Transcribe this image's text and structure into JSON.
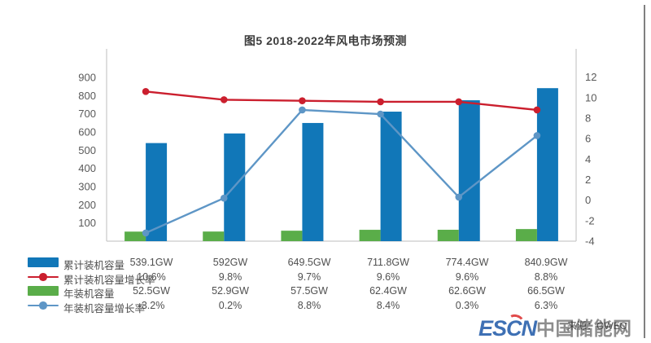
{
  "title": "图5 2018-2022年风电市场预测",
  "source_note": "来源：GWEC",
  "logo": {
    "es": "ES",
    "c": "C",
    "n": "N",
    "chinese": "中国储能网"
  },
  "colors": {
    "bar_primary": "#1177b8",
    "bar_secondary": "#5aad49",
    "line_primary": "#cb1f2e",
    "line_secondary": "#5e96c6",
    "axis_line": "#c9c9c9",
    "tick_text": "#595959",
    "title_text": "#3c3c3c",
    "logo_blue": "#3e70b4",
    "logo_gray": "#8d8d8d",
    "logo_red": "#e14b4b"
  },
  "chart_data": {
    "type": "combo (bar + line, dual axis)",
    "title": "图5 2018-2022年风电市场预测",
    "categories": [
      "",
      "",
      "",
      "",
      "",
      ""
    ],
    "series": [
      {
        "name": "累计装机容量",
        "type": "bar",
        "axis": "left",
        "color_key": "bar_primary",
        "unit": "GW",
        "values": [
          539.1,
          592,
          649.5,
          711.8,
          774.4,
          840.9
        ],
        "display": [
          "539.1GW",
          "592GW",
          "649.5GW",
          "711.8GW",
          "774.4GW",
          "840.9GW"
        ]
      },
      {
        "name": "累计装机容量增长率",
        "type": "line",
        "axis": "right",
        "color_key": "line_primary",
        "unit": "%",
        "values": [
          10.6,
          9.8,
          9.7,
          9.6,
          9.6,
          8.8
        ],
        "display": [
          "10.6%",
          "9.8%",
          "9.7%",
          "9.6%",
          "9.6%",
          "8.8%"
        ]
      },
      {
        "name": "年装机容量",
        "type": "bar",
        "axis": "left",
        "color_key": "bar_secondary",
        "unit": "GW",
        "values": [
          52.5,
          52.9,
          57.5,
          62.4,
          62.6,
          66.5
        ],
        "display": [
          "52.5GW",
          "52.9GW",
          "57.5GW",
          "62.4GW",
          "62.6GW",
          "66.5GW"
        ]
      },
      {
        "name": "年装机容量增长率",
        "type": "line",
        "axis": "right",
        "color_key": "line_secondary",
        "unit": "%",
        "values": [
          -3.2,
          0.2,
          8.8,
          8.4,
          0.3,
          6.3
        ],
        "display": [
          "-3.2%",
          "0.2%",
          "8.8%",
          "8.4%",
          "0.3%",
          "6.3%"
        ]
      }
    ],
    "left_axis": {
      "min": 0,
      "ticks": [
        100,
        200,
        300,
        400,
        500,
        600,
        700,
        800,
        900
      ]
    },
    "right_axis": {
      "min": -4,
      "ticks": [
        12,
        10,
        8,
        6,
        4,
        2,
        0,
        -2,
        -4
      ]
    },
    "grid": false,
    "legend_position": "bottom-table"
  }
}
